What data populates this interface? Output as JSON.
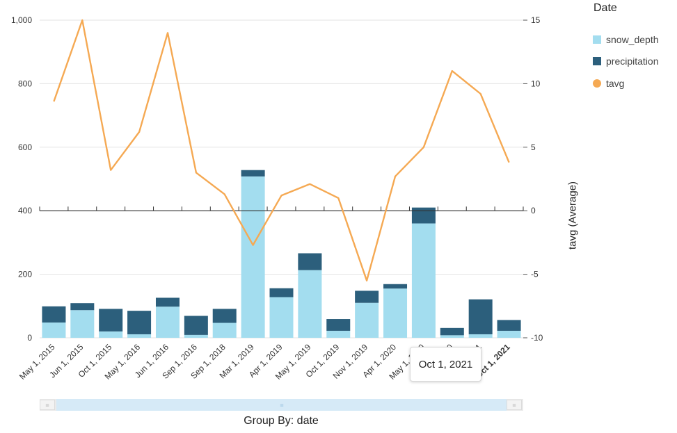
{
  "chart_data": {
    "type": "bar",
    "categories": [
      "May 1, 2015",
      "Jun 1, 2015",
      "Oct 1, 2015",
      "May 1, 2016",
      "Jun 1, 2016",
      "Sep 1, 2016",
      "Sep 1, 2018",
      "Mar 1, 2019",
      "Apr 1, 2019",
      "May 1, 2019",
      "Oct 1, 2019",
      "Nov 1, 2019",
      "Apr 1, 2020",
      "May 1, 2020",
      "Oct 1, 2020",
      "May 1, 2021",
      "Oct 1, 2021"
    ],
    "series": [
      {
        "name": "snow_depth",
        "type": "bar",
        "stack": "a",
        "axis": "left",
        "color": "#a3ddef",
        "values": [
          48,
          87,
          20,
          11,
          98,
          9,
          47,
          508,
          128,
          213,
          22,
          110,
          155,
          360,
          8,
          11,
          22
        ]
      },
      {
        "name": "precipitation",
        "type": "bar",
        "stack": "a",
        "axis": "left",
        "color": "#2c5f7c",
        "values": [
          51,
          22,
          71,
          74,
          28,
          60,
          44,
          20,
          28,
          53,
          37,
          38,
          14,
          50,
          23,
          110,
          34
        ]
      },
      {
        "name": "tavg",
        "type": "line",
        "axis": "right",
        "color": "#f5a953",
        "values": [
          8.6,
          15,
          3.2,
          6.2,
          14,
          3,
          1.3,
          -2.7,
          1.2,
          2.1,
          1,
          -5.5,
          2.7,
          5,
          11,
          9.2,
          3.8
        ]
      }
    ],
    "left_axis": {
      "ylim": [
        0,
        1000
      ],
      "ticks": [
        "0",
        "200",
        "400",
        "600",
        "800",
        "1,000"
      ]
    },
    "right_axis": {
      "ylim": [
        -10,
        15
      ],
      "ticks": [
        "-10",
        "-5",
        "0",
        "5",
        "10",
        "15"
      ],
      "label": "tavg (Average)"
    },
    "xlabel": "Group By: date",
    "legend": {
      "title": "Date",
      "position": "top-right"
    },
    "grid": true
  },
  "tooltip": {
    "text": "Oct 1, 2021"
  },
  "icons": {
    "scroll_handle": "grip-icon"
  }
}
